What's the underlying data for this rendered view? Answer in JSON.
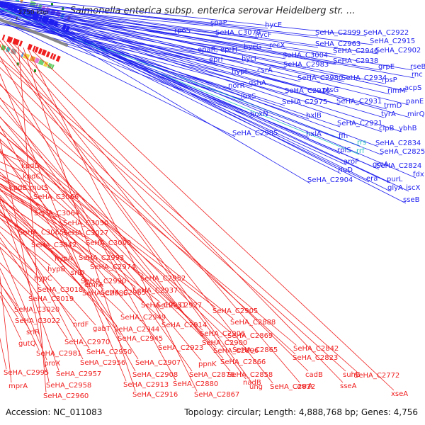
{
  "title": "Salmonella enterica subsp. enterica serovar Heidelberg str. ...",
  "footer": {
    "accession": "Accession: NC_011083",
    "topology": "Topology: circular; Length: 4,888,768 bp; Genes: 4,756"
  },
  "colors": {
    "forward": "#1f1ff0",
    "reverse": "#f01f1f",
    "rna": "#25c1c1",
    "backbone": "#888888",
    "tickmark": "#159015"
  },
  "ticks": [
    "3100 kbp",
    "3050 kbp",
    "3000 kbp",
    "2950 kbp",
    "2900 kbp",
    "2850 kbp",
    "2800 kbp",
    "2750 kbp"
  ],
  "forward_labels": [
    "rpoS",
    "spaP",
    "SeHA_C3079",
    "hycF",
    "hycE",
    "epaR, eprH",
    "hycG",
    "eprI",
    "hycI",
    "recX",
    "SeHA_C2999",
    "SeHA_C2922",
    "SeHA_C2915",
    "SeHA_C2902",
    "SeHA_C2963",
    "SeHA_C2946",
    "SeHA_C3004",
    "csrA",
    "hypF",
    "SeHA_C2983",
    "SeHA_C2938",
    "grpE",
    "rseB",
    "rnc",
    "gshA",
    "norR",
    "SeHA_C2980",
    "SeHA_C2934",
    "rpsP",
    "luxS",
    "SeHA_C2976",
    "ptsG",
    "rimM",
    "acpS",
    "SeHA_C2975",
    "SeHA_C2931",
    "trmD",
    "panE",
    "hoxN",
    "hxlB",
    "SeHA_C2921",
    "tyrA",
    "mirQ",
    "ffh",
    "ybhB",
    "SeHA_C2985",
    "hxlA",
    "clpB",
    "rrs",
    "rrf",
    "SeHA_C2834",
    "SeHA_C2825",
    "rplS",
    "aroF",
    "grcA",
    "SeHA_C2824",
    "rluD",
    "era",
    "purL",
    "fdx",
    "SeHA_C2904",
    "iscX",
    "glyA",
    "sseB"
  ],
  "reverse_labels": [
    "kpdD",
    "kpdC",
    "kpdB",
    "mutS",
    "SeHA_C3066",
    "SeHA_C3064",
    "SeHA_C3050",
    "SeHA_C3065",
    "SeHA_C3027",
    "SeHA_C3042",
    "SeHA_C3000",
    "hypA",
    "SeHA_C2993",
    "hypB",
    "SeHA_C2974",
    "hypC",
    "srlD",
    "SeHA_C2990",
    "SeHA_C2952",
    "SeHA_C3018",
    "SeHA_C3019",
    "SeHA_C2965",
    "SeHA_C2937",
    "emrA",
    "SeHA_C2986",
    "SeHA_C2951",
    "SeHA_C2927",
    "SeHA_C3020",
    "SeHA_C2949",
    "SeHA_C3022",
    "nrdF",
    "gabT",
    "SeHA_C2914",
    "SeHA_C2905",
    "srlR",
    "SeHA_C2944",
    "SeHA_C2906",
    "SeHA_C2888",
    "SeHA_C2970",
    "SeHA_C2945",
    "SeHA_C2869",
    "gutQ",
    "SeHA_C2900",
    "SeHA_C2950",
    "SeHA_C2981",
    "SeHA_C2923",
    "SeHA_C2896",
    "SeHA_C2865",
    "SeHA_C2842",
    "proX",
    "SeHA_C2956",
    "SeHA_C2907",
    "ppnK",
    "SeHA_C2866",
    "SeHA_C2823",
    "SeHA_C2995",
    "SeHA_C2957",
    "SeHA_C2908",
    "SeHA_C2876",
    "SeHA_C2858",
    "cadB",
    "suhB",
    "SeHA_C2772",
    "mprA",
    "SeHA_C2958",
    "SeHA_C2913",
    "SeHA_C2880",
    "nadB",
    "ung",
    "SeHA_C2832",
    "asrA",
    "sseA",
    "SeHA_C2960",
    "SeHA_C2916",
    "SeHA_C2867",
    "xseA"
  ]
}
